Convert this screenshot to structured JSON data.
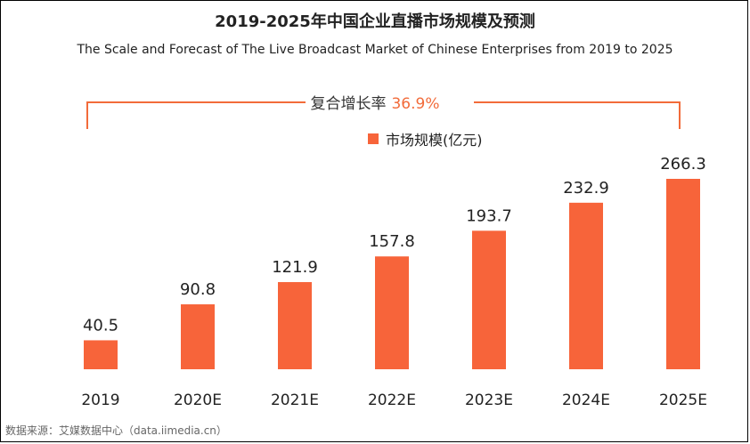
{
  "chart_data": {
    "type": "bar",
    "title": "2019-2025年中国企业直播市场规模及预测",
    "subtitle": "The Scale and Forecast of The Live Broadcast Market of Chinese Enterprises from 2019 to 2025",
    "categories": [
      "2019",
      "2020E",
      "2021E",
      "2022E",
      "2023E",
      "2024E",
      "2025E"
    ],
    "series": [
      {
        "name": "市场规模(亿元)",
        "values": [
          40.5,
          90.8,
          121.9,
          157.8,
          193.7,
          232.9,
          266.3
        ]
      }
    ],
    "value_labels": [
      "40.5",
      "90.8",
      "121.9",
      "157.8",
      "193.7",
      "232.9",
      "266.3"
    ],
    "annotation": {
      "label": "复合增长率",
      "value": "36.9%"
    },
    "legend_position": "top-center",
    "grid": false,
    "ylim": [
      0,
      266.3
    ],
    "colors": {
      "bar": "#f7643a",
      "bracket": "#f26b3a",
      "cagr_value": "#f26b3a"
    }
  },
  "source": "数据来源：艾媒数据中心（data.iimedia.cn）"
}
